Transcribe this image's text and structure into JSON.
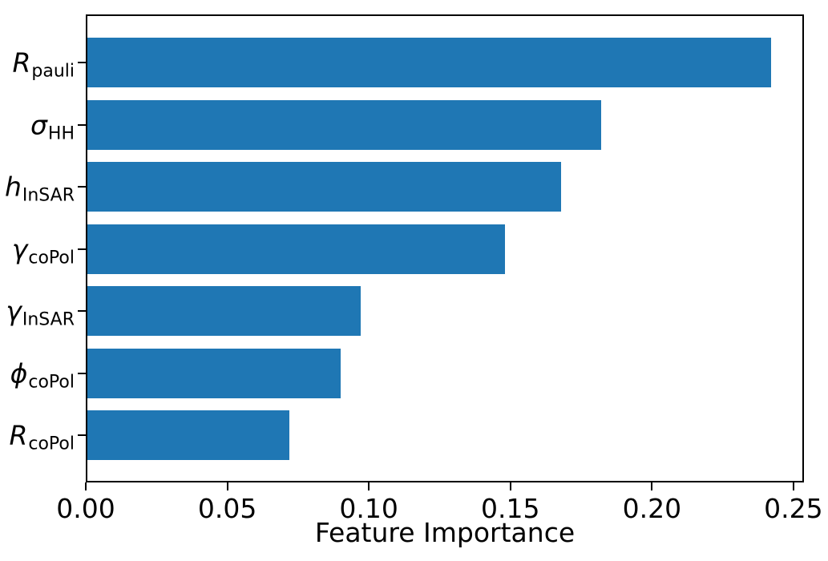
{
  "chart_data": {
    "type": "bar",
    "orientation": "horizontal",
    "title": "",
    "xlabel": "Feature Importance",
    "ylabel": "",
    "grid": false,
    "legend_position": "none",
    "bar_color": "#1f77b4",
    "axis_color": "#000000",
    "background_color": "#ffffff",
    "xlim": [
      0,
      0.2537
    ],
    "x_ticks": [
      {
        "label": "0.00",
        "value": 0.0
      },
      {
        "label": "0.05",
        "value": 0.05
      },
      {
        "label": "0.10",
        "value": 0.1
      },
      {
        "label": "0.15",
        "value": 0.15
      },
      {
        "label": "0.20",
        "value": 0.2
      },
      {
        "label": "0.25",
        "value": 0.25
      }
    ],
    "categories": [
      {
        "symbol": "R",
        "subscript": "pauli",
        "name": "r-pauli"
      },
      {
        "symbol": "σ",
        "subscript": "HH",
        "name": "sigma-hh"
      },
      {
        "symbol": "h",
        "subscript": "InSAR",
        "name": "h-insar"
      },
      {
        "symbol": "γ",
        "subscript": "coPol",
        "name": "gamma-copol"
      },
      {
        "symbol": "γ",
        "subscript": "InSAR",
        "name": "gamma-insar"
      },
      {
        "symbol": "ϕ",
        "subscript": "coPol",
        "name": "phi-copol"
      },
      {
        "symbol": "R",
        "subscript": "coPol",
        "name": "r-copol"
      }
    ],
    "values": [
      0.242,
      0.182,
      0.168,
      0.148,
      0.097,
      0.09,
      0.072
    ]
  }
}
